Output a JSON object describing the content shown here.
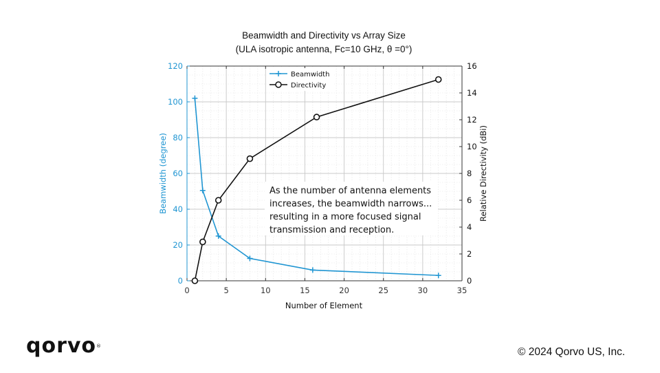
{
  "chart_data": {
    "type": "line",
    "title": "Beamwidth and Directivity vs Array Size",
    "subtitle": "(ULA isotropic antenna, Fc=10 GHz, θ =0°)",
    "xlabel": "Number of Element",
    "xlim": [
      0,
      35
    ],
    "x_ticks": [
      "0",
      "5",
      "10",
      "15",
      "20",
      "25",
      "30",
      "35"
    ],
    "y_left": {
      "label": "Beamwidth (degree)",
      "lim": [
        0,
        120
      ],
      "ticks": [
        "0",
        "20",
        "40",
        "60",
        "80",
        "100",
        "120"
      ],
      "color": "#1f95d2"
    },
    "y_right": {
      "label": "Relative Directivity (dBi)",
      "lim": [
        0,
        16
      ],
      "ticks": [
        "0",
        "2",
        "4",
        "6",
        "8",
        "10",
        "12",
        "14",
        "16"
      ],
      "color": "#111111"
    },
    "grid": true,
    "legend_position": "top-center",
    "series": [
      {
        "name": "Beamwidth",
        "axis": "left",
        "marker": "plus",
        "color": "#1f95d2",
        "x": [
          1,
          2,
          4,
          8,
          16,
          32
        ],
        "y": [
          102,
          50.5,
          25,
          12.5,
          6,
          3
        ]
      },
      {
        "name": "Directivity",
        "axis": "right",
        "marker": "circle",
        "color": "#111111",
        "x": [
          1,
          2,
          4,
          8,
          16.5,
          32
        ],
        "y": [
          0,
          2.9,
          6,
          9.1,
          12.2,
          15
        ]
      }
    ],
    "annotation": [
      "As the number of antenna elements",
      "increases, the beamwidth narrows...",
      "resulting in a more focused signal",
      "transmission and reception."
    ]
  },
  "footer": {
    "logo_text": "qorvo",
    "logo_mark": "®",
    "copyright": "© 2024 Qorvo US, Inc."
  }
}
